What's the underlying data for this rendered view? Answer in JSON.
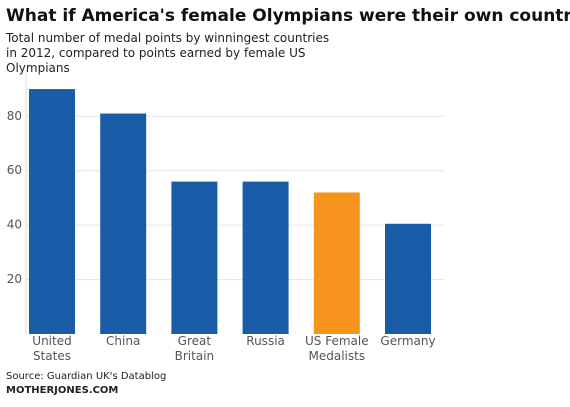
{
  "chart_data": {
    "type": "bar",
    "title": "What if America's female Olympians were their own country?",
    "subtitle": "Total number of medal points by winningest countries in 2012, compared to points earned by female US Olympians",
    "categories": [
      "United States",
      "China",
      "Great Britain",
      "Russia",
      "US Female Medalists",
      "Germany"
    ],
    "values": [
      90,
      81,
      56,
      56,
      52,
      40.5
    ],
    "colors": [
      "#1b5ca8",
      "#1b5ca8",
      "#1b5ca8",
      "#1b5ca8",
      "#f7941d",
      "#1b5ca8"
    ],
    "ylim": [
      0,
      97
    ],
    "yticks": [
      20,
      40,
      60,
      80
    ],
    "grid": true,
    "source": "Source: Guardian UK's Datablog",
    "credit": "MOTHERJONES.COM"
  }
}
